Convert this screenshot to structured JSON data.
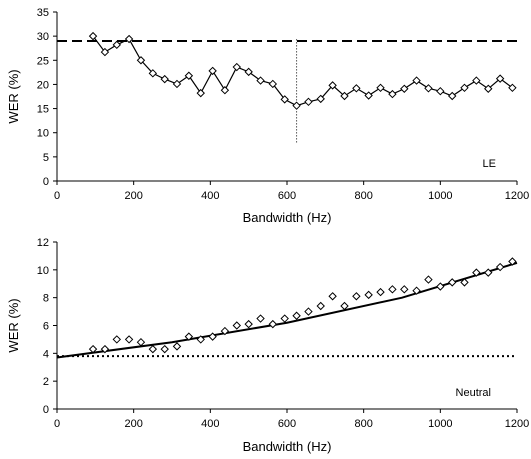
{
  "chart_data": [
    {
      "type": "line",
      "annotation": "LE",
      "xlabel": "Bandwidth (Hz)",
      "ylabel": "WER (%)",
      "xlim": [
        0,
        1200
      ],
      "ylim": [
        0,
        35
      ],
      "xticks": [
        "0",
        "200",
        "400",
        "600",
        "800",
        "1000",
        "1200"
      ],
      "yticks": [
        "0",
        "5",
        "10",
        "15",
        "20",
        "25",
        "30",
        "35"
      ],
      "reference_line": {
        "y": 29,
        "style": "dashed"
      },
      "marker_line": {
        "x": 625,
        "y_from": 8,
        "y_to": 29.5,
        "style": "dotted"
      },
      "x": [
        94,
        125,
        156,
        188,
        219,
        250,
        281,
        313,
        344,
        375,
        406,
        438,
        469,
        500,
        531,
        563,
        594,
        625,
        656,
        688,
        719,
        750,
        781,
        813,
        844,
        875,
        906,
        938,
        969,
        1000,
        1031,
        1063,
        1094,
        1125,
        1156,
        1188
      ],
      "y": [
        30,
        26.7,
        28.2,
        29.4,
        25.0,
        22.3,
        21.1,
        20.1,
        21.8,
        18.2,
        22.8,
        18.8,
        23.6,
        22.6,
        20.8,
        20.1,
        16.9,
        15.6,
        16.4,
        17.0,
        19.8,
        17.6,
        19.2,
        17.7,
        19.3,
        18.0,
        19.1,
        20.8,
        19.2,
        18.6,
        17.6,
        19.3,
        20.8,
        19.1,
        21.2,
        19.3
      ]
    },
    {
      "type": "scatter",
      "annotation": "Neutral",
      "xlabel": "Bandwidth (Hz)",
      "ylabel": "WER (%)",
      "xlim": [
        0,
        1200
      ],
      "ylim": [
        0,
        12
      ],
      "xticks": [
        "0",
        "200",
        "400",
        "600",
        "800",
        "1000",
        "1200"
      ],
      "yticks": [
        "0",
        "2",
        "4",
        "6",
        "8",
        "10",
        "12"
      ],
      "reference_line": {
        "y": 3.8,
        "style": "dotted"
      },
      "trend_line": {
        "x": [
          0,
          300,
          600,
          900,
          1200
        ],
        "y": [
          3.7,
          4.8,
          6.2,
          8.0,
          10.5
        ]
      },
      "x": [
        94,
        125,
        156,
        188,
        219,
        250,
        281,
        313,
        344,
        375,
        406,
        438,
        469,
        500,
        531,
        563,
        594,
        625,
        656,
        688,
        719,
        750,
        781,
        813,
        844,
        875,
        906,
        938,
        969,
        1000,
        1031,
        1063,
        1094,
        1125,
        1156,
        1188
      ],
      "y": [
        4.3,
        4.3,
        5.0,
        5.0,
        4.8,
        4.3,
        4.3,
        4.5,
        5.2,
        5.0,
        5.2,
        5.6,
        6.0,
        6.1,
        6.5,
        6.1,
        6.5,
        6.7,
        7.0,
        7.4,
        8.1,
        7.4,
        8.1,
        8.2,
        8.4,
        8.6,
        8.6,
        8.5,
        9.3,
        8.8,
        9.1,
        9.1,
        9.8,
        9.8,
        10.2,
        10.6
      ]
    }
  ]
}
